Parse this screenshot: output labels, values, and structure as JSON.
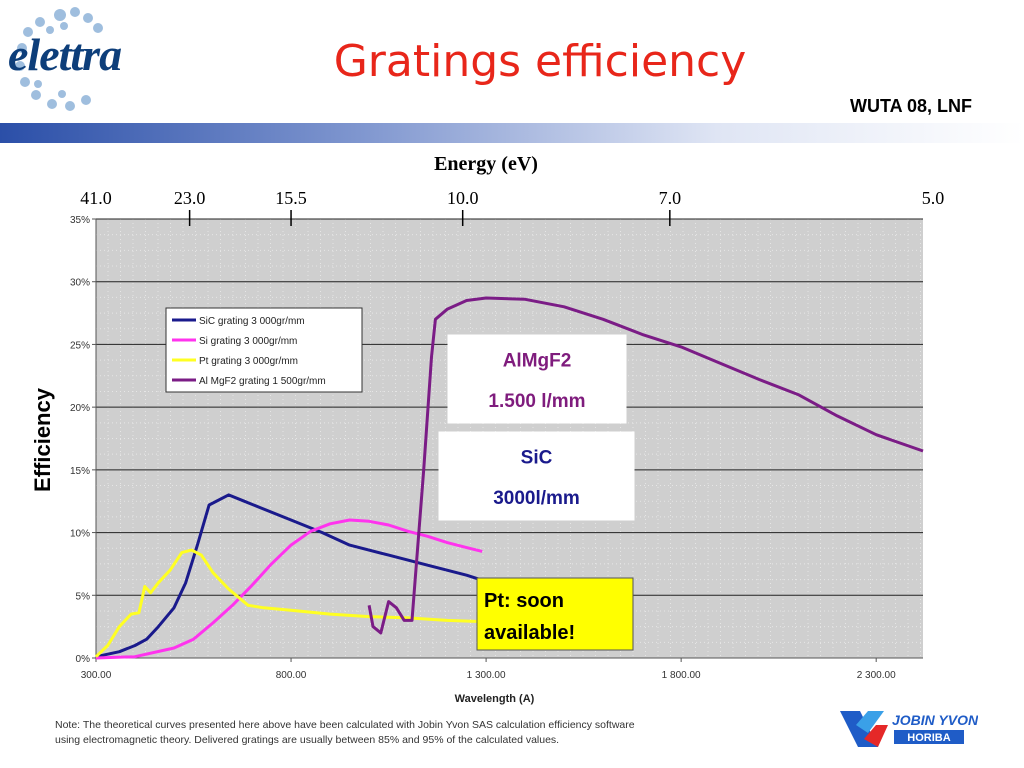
{
  "header": {
    "logo_text": "elettra",
    "title": "Gratings efficiency",
    "subtitle": "WUTA 08, LNF"
  },
  "energy_axis": {
    "title": "Energy (eV)",
    "ticks": [
      {
        "label": "41.0",
        "wavelength": 300
      },
      {
        "label": "23.0",
        "wavelength": 540
      },
      {
        "label": "15.5",
        "wavelength": 800
      },
      {
        "label": "10.0",
        "wavelength": 1240
      },
      {
        "label": "7.0",
        "wavelength": 1771
      },
      {
        "label": "5.0",
        "wavelength": 2480
      }
    ]
  },
  "y_label": "Efficiency",
  "footer": {
    "note_line1": "Note: The theoretical curves presented here above have been calculated with Jobin Yvon SAS calculation efficiency software",
    "note_line2": "using electromagnetic theory. Delivered gratings are usually between 85% and 95% of the calculated values.",
    "brand_name": "JOBIN YVON",
    "brand_sub": "HORIBA"
  },
  "callouts": {
    "almgf2": {
      "line1": "AlMgF2",
      "line2": "1.500 l/mm",
      "color": "#7f1c7d"
    },
    "sic": {
      "line1": "SiC",
      "line2": "3000l/mm",
      "color": "#1a1a8c"
    },
    "pt": {
      "line1": "Pt: soon",
      "line2": "available!",
      "bg": "#ffff00"
    }
  },
  "chart_data": {
    "type": "line",
    "xlabel": "Wavelength (A)",
    "ylabel": "",
    "xlim": [
      300,
      2420
    ],
    "ylim": [
      0,
      0.35
    ],
    "x_ticks": [
      {
        "value": 300,
        "label": "300.00"
      },
      {
        "value": 800,
        "label": "800.00"
      },
      {
        "value": 1300,
        "label": "1 300.00"
      },
      {
        "value": 1800,
        "label": "1 800.00"
      },
      {
        "value": 2300,
        "label": "2 300.00"
      }
    ],
    "y_ticks": [
      {
        "value": 0,
        "label": "0%"
      },
      {
        "value": 0.05,
        "label": "5%"
      },
      {
        "value": 0.1,
        "label": "10%"
      },
      {
        "value": 0.15,
        "label": "15%"
      },
      {
        "value": 0.2,
        "label": "20%"
      },
      {
        "value": 0.25,
        "label": "25%"
      },
      {
        "value": 0.3,
        "label": "30%"
      },
      {
        "value": 0.35,
        "label": "35%"
      }
    ],
    "grid": true,
    "legend_position": "upper-left",
    "series": [
      {
        "name": "SiC grating 3 000gr/mm",
        "color": "#1a1a8c",
        "points": [
          [
            300,
            0.001
          ],
          [
            360,
            0.005
          ],
          [
            400,
            0.01
          ],
          [
            430,
            0.015
          ],
          [
            460,
            0.025
          ],
          [
            500,
            0.04
          ],
          [
            530,
            0.06
          ],
          [
            560,
            0.09
          ],
          [
            590,
            0.122
          ],
          [
            640,
            0.13
          ],
          [
            680,
            0.125
          ],
          [
            720,
            0.12
          ],
          [
            800,
            0.11
          ],
          [
            880,
            0.1
          ],
          [
            950,
            0.09
          ],
          [
            1050,
            0.082
          ],
          [
            1150,
            0.074
          ],
          [
            1250,
            0.066
          ],
          [
            1290,
            0.062
          ]
        ]
      },
      {
        "name": "Si grating 3 000gr/mm",
        "color": "#ff33ee",
        "points": [
          [
            300,
            0.0
          ],
          [
            400,
            0.001
          ],
          [
            500,
            0.008
          ],
          [
            550,
            0.015
          ],
          [
            600,
            0.028
          ],
          [
            650,
            0.042
          ],
          [
            700,
            0.058
          ],
          [
            750,
            0.075
          ],
          [
            800,
            0.09
          ],
          [
            850,
            0.101
          ],
          [
            900,
            0.107
          ],
          [
            950,
            0.11
          ],
          [
            1000,
            0.109
          ],
          [
            1050,
            0.106
          ],
          [
            1100,
            0.101
          ],
          [
            1150,
            0.097
          ],
          [
            1200,
            0.092
          ],
          [
            1250,
            0.088
          ],
          [
            1290,
            0.085
          ]
        ]
      },
      {
        "name": "Pt grating 3 000gr/mm",
        "color": "#ffff22",
        "points": [
          [
            300,
            0.001
          ],
          [
            330,
            0.01
          ],
          [
            360,
            0.025
          ],
          [
            390,
            0.035
          ],
          [
            410,
            0.036
          ],
          [
            425,
            0.057
          ],
          [
            440,
            0.052
          ],
          [
            460,
            0.06
          ],
          [
            490,
            0.07
          ],
          [
            520,
            0.084
          ],
          [
            545,
            0.086
          ],
          [
            570,
            0.082
          ],
          [
            600,
            0.068
          ],
          [
            640,
            0.055
          ],
          [
            690,
            0.042
          ],
          [
            730,
            0.04
          ],
          [
            800,
            0.038
          ],
          [
            900,
            0.035
          ],
          [
            1000,
            0.033
          ],
          [
            1100,
            0.032
          ],
          [
            1200,
            0.03
          ],
          [
            1290,
            0.029
          ]
        ]
      },
      {
        "name": "Al MgF2 grating 1 500gr/mm",
        "color": "#7b1c86",
        "points": [
          [
            1000,
            0.042
          ],
          [
            1010,
            0.025
          ],
          [
            1030,
            0.02
          ],
          [
            1050,
            0.045
          ],
          [
            1070,
            0.04
          ],
          [
            1090,
            0.03
          ],
          [
            1110,
            0.03
          ],
          [
            1140,
            0.15
          ],
          [
            1160,
            0.24
          ],
          [
            1170,
            0.27
          ],
          [
            1200,
            0.278
          ],
          [
            1250,
            0.285
          ],
          [
            1300,
            0.287
          ],
          [
            1400,
            0.286
          ],
          [
            1500,
            0.28
          ],
          [
            1600,
            0.27
          ],
          [
            1700,
            0.258
          ],
          [
            1800,
            0.248
          ],
          [
            1900,
            0.235
          ],
          [
            2000,
            0.222
          ],
          [
            2100,
            0.21
          ],
          [
            2200,
            0.193
          ],
          [
            2300,
            0.178
          ],
          [
            2420,
            0.165
          ]
        ]
      }
    ]
  }
}
